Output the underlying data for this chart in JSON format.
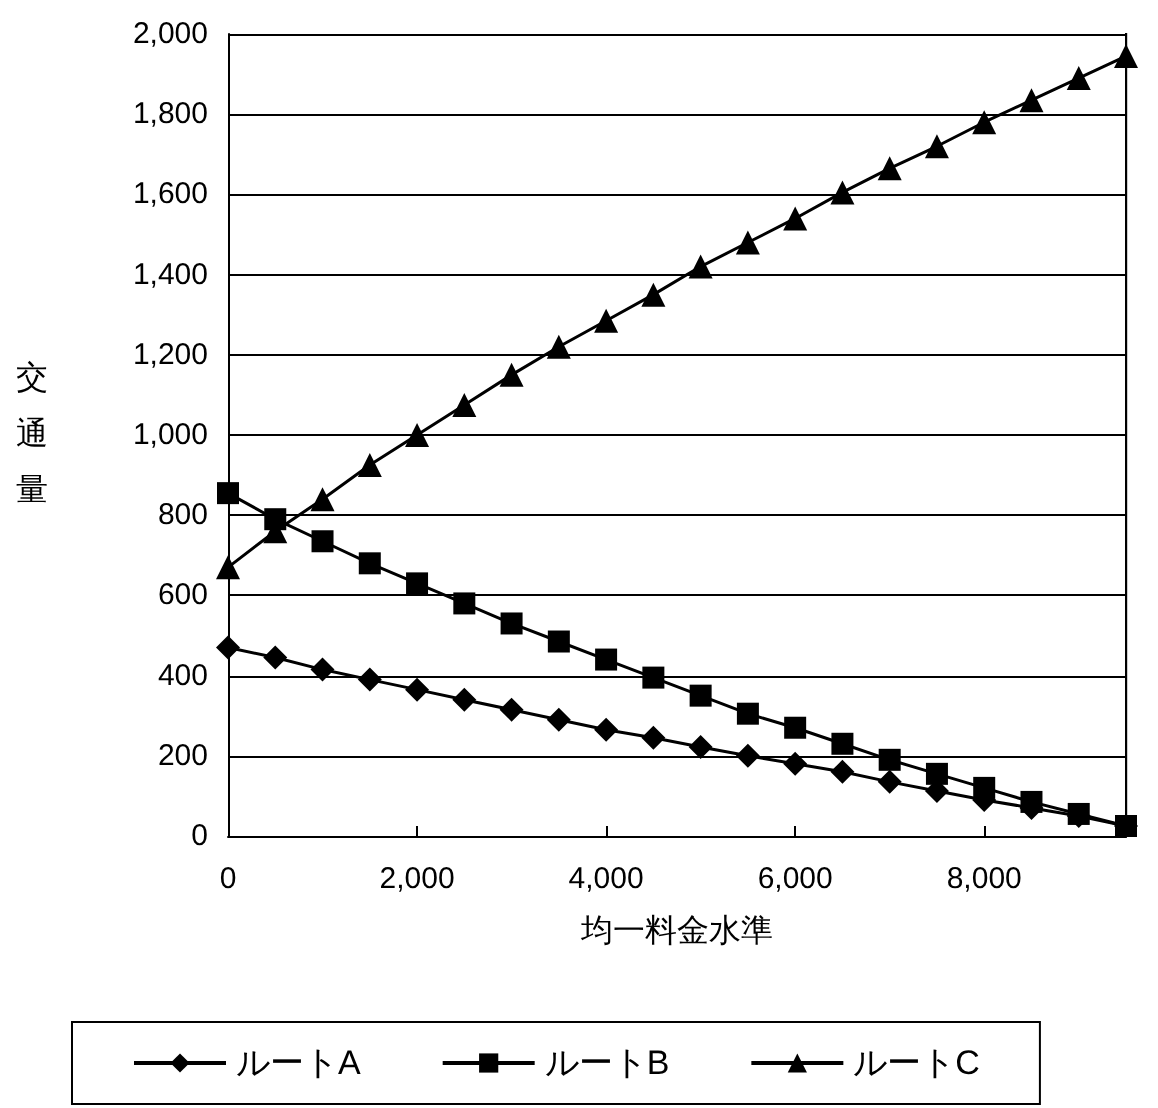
{
  "chart_data": {
    "type": "line",
    "xlabel": "均一料金水準",
    "ylabel": "交通量",
    "x": [
      0,
      500,
      1000,
      1500,
      2000,
      2500,
      3000,
      3500,
      4000,
      4500,
      5000,
      5500,
      6000,
      6500,
      7000,
      7500,
      8000,
      8500,
      9000,
      9500
    ],
    "series": [
      {
        "name": "ルートA",
        "color": "#000000",
        "marker": "diamond",
        "values": [
          470,
          445,
          415,
          390,
          365,
          340,
          315,
          290,
          265,
          245,
          222,
          200,
          180,
          160,
          135,
          112,
          90,
          70,
          50,
          25
        ]
      },
      {
        "name": "ルートB",
        "color": "#000000",
        "marker": "square",
        "values": [
          855,
          790,
          735,
          680,
          630,
          580,
          530,
          485,
          440,
          395,
          350,
          305,
          270,
          230,
          190,
          155,
          120,
          85,
          55,
          25
        ]
      },
      {
        "name": "ルートC",
        "color": "#000000",
        "marker": "triangle",
        "values": [
          670,
          760,
          840,
          925,
          1000,
          1075,
          1150,
          1220,
          1285,
          1350,
          1420,
          1480,
          1540,
          1605,
          1665,
          1720,
          1780,
          1835,
          1890,
          1945
        ]
      }
    ],
    "xlim": [
      0,
      9500
    ],
    "xticks": [
      0,
      {
        "value": 2000,
        "label": "2,000"
      },
      {
        "value": 4000,
        "label": "4,000"
      },
      {
        "value": 6000,
        "label": "6,000"
      },
      {
        "value": 8000,
        "label": "8,000"
      }
    ],
    "ylim": [
      0,
      2000
    ],
    "yticks": [
      0,
      200,
      400,
      600,
      800,
      {
        "value": 1000,
        "label": "1,000"
      },
      {
        "value": 1200,
        "label": "1,200"
      },
      {
        "value": 1400,
        "label": "1,400"
      },
      {
        "value": 1600,
        "label": "1,600"
      },
      {
        "value": 1800,
        "label": "1,800"
      },
      {
        "value": 2000,
        "label": "2,000"
      }
    ],
    "grid": "y",
    "legend": "bottom",
    "line_style": "solid"
  }
}
